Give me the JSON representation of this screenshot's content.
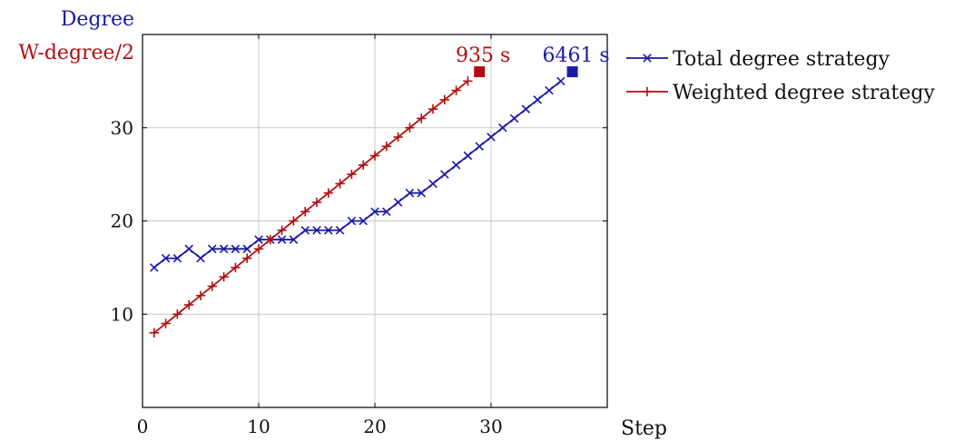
{
  "chart_data": {
    "type": "line",
    "title": "",
    "ylabel_lines": [
      {
        "text": "Degree",
        "color": "#1a1aa8"
      },
      {
        "text": "W-degree/2",
        "color": "#b01010"
      }
    ],
    "xlabel": "Step",
    "xlim": [
      0,
      40
    ],
    "ylim": [
      0,
      40
    ],
    "xticks": [
      0,
      10,
      20,
      30
    ],
    "yticks": [
      10,
      20,
      30
    ],
    "grid": true,
    "legend_position": "outside-right-top",
    "series": [
      {
        "name": "Total degree strategy",
        "color": "#1a1aa8",
        "marker": "x",
        "x": [
          1,
          2,
          3,
          4,
          5,
          6,
          7,
          8,
          9,
          10,
          11,
          12,
          13,
          14,
          15,
          16,
          17,
          18,
          19,
          20,
          21,
          22,
          23,
          24,
          25,
          26,
          27,
          28,
          29,
          30,
          31,
          32,
          33,
          34,
          35,
          36
        ],
        "y": [
          15,
          16,
          16,
          17,
          16,
          17,
          17,
          17,
          17,
          18,
          18,
          18,
          18,
          19,
          19,
          19,
          19,
          20,
          20,
          21,
          21,
          22,
          23,
          23,
          24,
          25,
          26,
          27,
          28,
          29,
          30,
          31,
          32,
          33,
          34,
          35
        ],
        "end_point": {
          "x": 37,
          "y": 36,
          "label": "6461 s"
        }
      },
      {
        "name": "Weighted degree strategy",
        "color": "#b01010",
        "marker": "+",
        "x": [
          1,
          2,
          3,
          4,
          5,
          6,
          7,
          8,
          9,
          10,
          11,
          12,
          13,
          14,
          15,
          16,
          17,
          18,
          19,
          20,
          21,
          22,
          23,
          24,
          25,
          26,
          27,
          28
        ],
        "y": [
          8,
          9,
          10,
          11,
          12,
          13,
          14,
          15,
          16,
          17,
          18,
          19,
          20,
          21,
          22,
          23,
          24,
          25,
          26,
          27,
          28,
          29,
          30,
          31,
          32,
          33,
          34,
          35
        ],
        "end_point": {
          "x": 29,
          "y": 36,
          "label": "935 s"
        }
      }
    ]
  }
}
